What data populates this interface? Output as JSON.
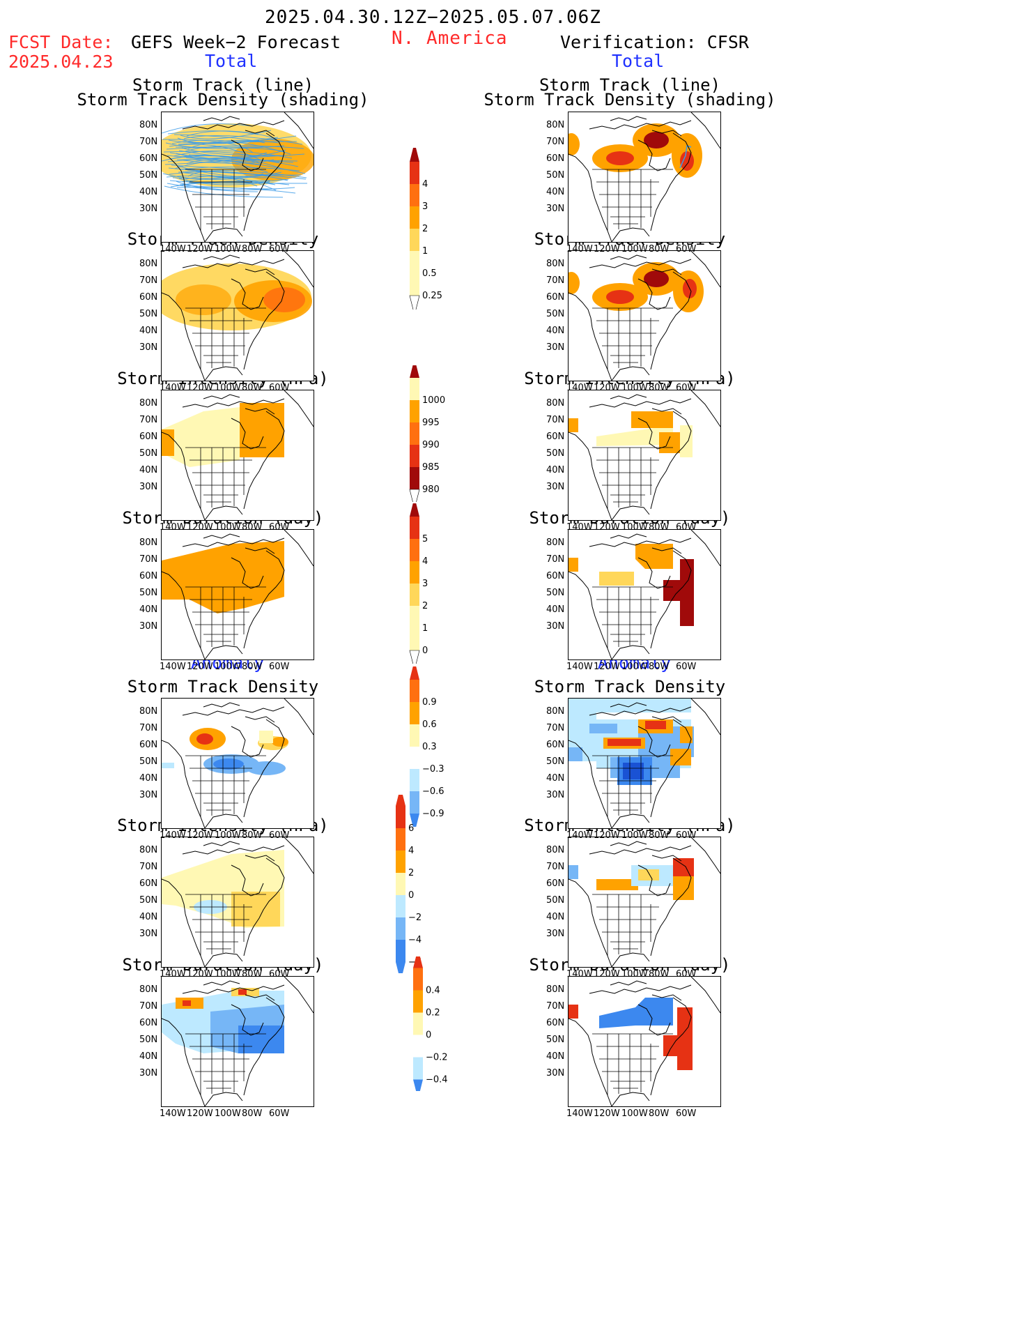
{
  "header": {
    "period": "2025.04.30.12Z−2025.05.07.06Z",
    "region": "N. America",
    "fcst_label": "FCST Date:",
    "fcst_date": "2025.04.23",
    "left_title": "GEFS Week−2 Forecast",
    "right_title": "Verification: CFSR",
    "total_label": "Total",
    "anomaly_label": "Anomaly"
  },
  "panels": {
    "track": [
      "Storm Track (line)",
      "Storm Track Density (shading)"
    ],
    "density": "Storm Track Density",
    "intensity": "Storm Intensity (hPa)",
    "duration": "Storm Duration (day)"
  },
  "axes": {
    "lat": [
      "80N",
      "70N",
      "60N",
      "50N",
      "40N",
      "30N"
    ],
    "lon": [
      "140W",
      "120W",
      "100W",
      "80W",
      "60W"
    ]
  },
  "colorbars": {
    "density_total": [
      "4",
      "3",
      "2",
      "1",
      "0.5",
      "0.25"
    ],
    "intensity_total": [
      "1000",
      "995",
      "990",
      "985",
      "980"
    ],
    "duration_total": [
      "5",
      "4",
      "3",
      "2",
      "1",
      "0"
    ],
    "density_anom": [
      "0.9",
      "0.6",
      "0.3",
      "−0.3",
      "−0.6",
      "−0.9"
    ],
    "intensity_anom": [
      "6",
      "4",
      "2",
      "0",
      "−2",
      "−4",
      "−6"
    ],
    "duration_anom": [
      "0.4",
      "0.2",
      "0",
      "−0.2",
      "−0.4"
    ]
  },
  "colors": {
    "pale_yellow": "#fff8b4",
    "light_orange": "#ffd75a",
    "orange": "#ffa200",
    "dark_orange": "#ff7010",
    "red": "#e63214",
    "dark_red": "#a00a0a",
    "light_blue": "#bde9ff",
    "mid_blue": "#76b6f6",
    "blue": "#3c88ef",
    "dark_blue": "#1a52d4",
    "track_line": "#3c9be8"
  }
}
